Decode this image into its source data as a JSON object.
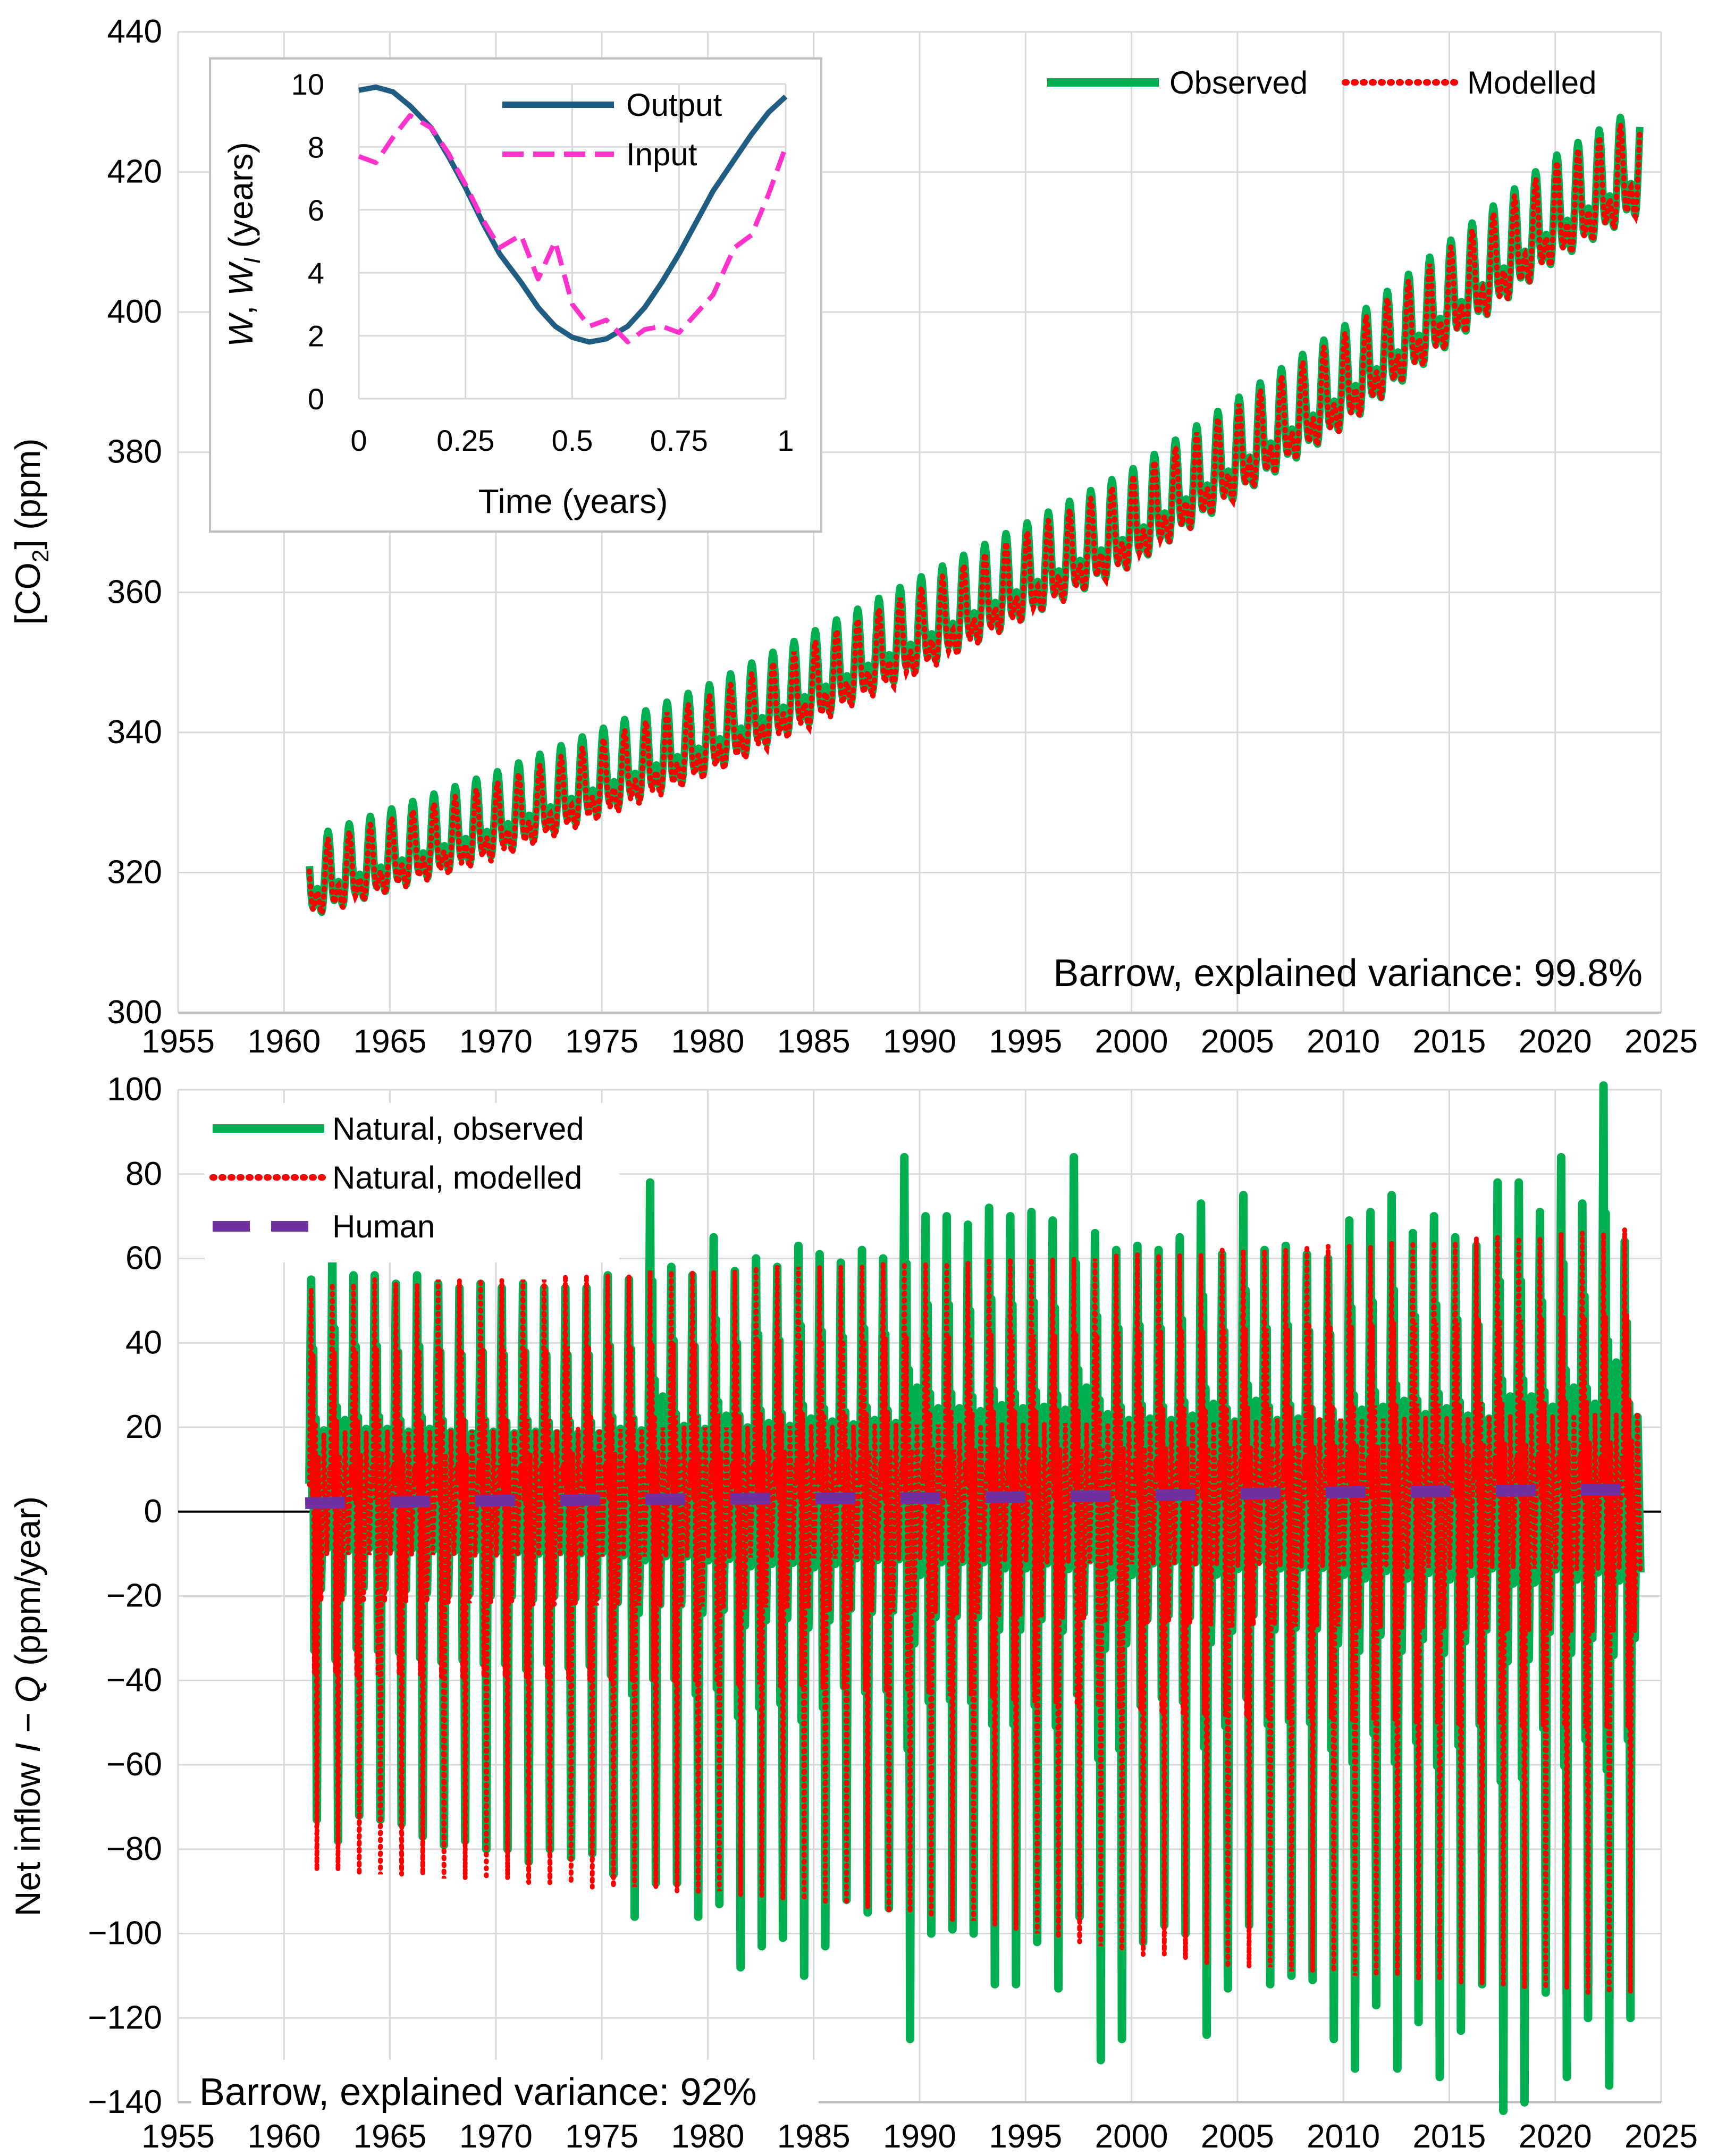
{
  "chart_data": [
    {
      "type": "line",
      "panel": "top",
      "xlim": [
        1955,
        2025
      ],
      "ylim": [
        300,
        440
      ],
      "x_ticks": [
        1955,
        1960,
        1965,
        1970,
        1975,
        1980,
        1985,
        1990,
        1995,
        2000,
        2005,
        2010,
        2015,
        2020,
        2025
      ],
      "y_ticks": [
        300,
        320,
        340,
        360,
        380,
        400,
        420,
        440
      ],
      "ylabel_parts": [
        "[CO",
        "2",
        "] (ppm)"
      ],
      "grid": true,
      "legend_position": "top-right",
      "annotation": "Barrow, explained variance: 99.8%",
      "series": [
        {
          "name": "Observed",
          "color": "#00b050",
          "style": "solid",
          "trend": {
            "x": [
              1961.2,
              1970,
              1980,
              1990,
              2000,
              2010,
              2020,
              2024
            ],
            "y": [
              318,
              327,
              339,
              354,
              369,
              389,
              413,
              420
            ]
          },
          "seasonal_amplitude": {
            "x": [
              1961.2,
              2024
            ],
            "y": [
              7.0,
              9.5
            ]
          }
        },
        {
          "name": "Modelled",
          "color": "#ff0000",
          "style": "dotted",
          "trend": {
            "x": [
              1961.2,
              1970,
              1980,
              1990,
              2000,
              2010,
              2020,
              2024
            ],
            "y": [
              317.5,
              326,
              338,
              353,
              368.5,
              388.5,
              412.5,
              419.5
            ]
          },
          "seasonal_amplitude": {
            "x": [
              1961.2,
              2024
            ],
            "y": [
              6.5,
              9.0
            ]
          }
        }
      ]
    },
    {
      "type": "line",
      "panel": "inset",
      "xlim": [
        0,
        1
      ],
      "ylim": [
        0,
        10
      ],
      "x_ticks": [
        "0",
        "0.25",
        "0.5",
        "0.75",
        "1"
      ],
      "y_ticks": [
        "0",
        "2",
        "4",
        "6",
        "8",
        "10"
      ],
      "xlabel": "Time (years)",
      "ylabel_parts": [
        "W",
        ", ",
        "W",
        "I",
        " (years)"
      ],
      "grid": true,
      "legend_position": "top-right",
      "series": [
        {
          "name": "Output",
          "color": "#1f5c82",
          "style": "solid",
          "x": [
            0,
            0.04,
            0.08,
            0.12,
            0.17,
            0.21,
            0.25,
            0.29,
            0.33,
            0.38,
            0.42,
            0.46,
            0.5,
            0.54,
            0.58,
            0.63,
            0.67,
            0.71,
            0.75,
            0.79,
            0.83,
            0.88,
            0.92,
            0.96,
            1.0
          ],
          "y": [
            9.8,
            9.9,
            9.75,
            9.3,
            8.6,
            7.7,
            6.7,
            5.6,
            4.6,
            3.7,
            2.9,
            2.3,
            1.95,
            1.8,
            1.9,
            2.3,
            2.9,
            3.7,
            4.6,
            5.6,
            6.6,
            7.6,
            8.4,
            9.1,
            9.6
          ]
        },
        {
          "name": "Input",
          "color": "#ff33cc",
          "style": "dashed",
          "x": [
            0,
            0.04,
            0.08,
            0.12,
            0.17,
            0.21,
            0.25,
            0.29,
            0.33,
            0.38,
            0.42,
            0.46,
            0.5,
            0.54,
            0.58,
            0.63,
            0.67,
            0.71,
            0.75,
            0.79,
            0.83,
            0.88,
            0.92,
            0.96,
            1.0
          ],
          "y": [
            7.7,
            7.5,
            8.3,
            9.0,
            8.6,
            7.8,
            6.8,
            5.7,
            4.8,
            5.2,
            3.8,
            5.0,
            3.0,
            2.3,
            2.5,
            1.8,
            2.2,
            2.3,
            2.1,
            2.7,
            3.3,
            4.8,
            5.2,
            6.5,
            8.0
          ]
        }
      ]
    },
    {
      "type": "line",
      "panel": "bottom",
      "xlim": [
        1955,
        2025
      ],
      "ylim": [
        -140,
        100
      ],
      "x_ticks": [
        1955,
        1960,
        1965,
        1970,
        1975,
        1980,
        1985,
        1990,
        1995,
        2000,
        2005,
        2010,
        2015,
        2020,
        2025
      ],
      "y_ticks": [
        -140,
        -120,
        -100,
        -80,
        -60,
        -40,
        -20,
        0,
        20,
        40,
        60,
        80,
        100
      ],
      "ylabel_parts": [
        "Net inflow ",
        "I",
        " − ",
        "Q",
        " (ppm/year)"
      ],
      "grid": true,
      "legend_position": "top-left",
      "annotation": "Barrow, explained variance: 92%",
      "series": [
        {
          "name": "Natural, observed",
          "color": "#00b050",
          "style": "solid",
          "annual_max": [
            55,
            62,
            56,
            56,
            54,
            56,
            54,
            53,
            54,
            53,
            54,
            53,
            53,
            53,
            56,
            55,
            78,
            58,
            56,
            65,
            57,
            60,
            58,
            63,
            61,
            59,
            62,
            60,
            84,
            70,
            70,
            68,
            72,
            70,
            71,
            69,
            84,
            66,
            62,
            63,
            62,
            65,
            73,
            61,
            75,
            62,
            63,
            61,
            60,
            69,
            71,
            75,
            66,
            70,
            65,
            63,
            78,
            78,
            71,
            84,
            73,
            101,
            64,
            92,
            62,
            85,
            74
          ],
          "annual_min": [
            -73,
            -78,
            -72,
            -73,
            -74,
            -77,
            -79,
            -78,
            -80,
            -80,
            -83,
            -80,
            -82,
            -81,
            -86,
            -96,
            -88,
            -88,
            -96,
            -93,
            -108,
            -103,
            -101,
            -110,
            -103,
            -92,
            -95,
            -94,
            -125,
            -100,
            -99,
            -100,
            -112,
            -112,
            -102,
            -113,
            -96,
            -130,
            -125,
            -102,
            -98,
            -100,
            -124,
            -113,
            -98,
            -112,
            -110,
            -111,
            -125,
            -132,
            -117,
            -132,
            -121,
            -134,
            -123,
            -112,
            -142,
            -140,
            -114,
            -134,
            -120,
            -136,
            -120,
            -128,
            -142,
            -129,
            -125
          ]
        },
        {
          "name": "Natural, modelled",
          "color": "#ff0000",
          "style": "dotted",
          "annual_max": [
            53,
            54,
            54,
            55,
            54,
            54,
            55,
            55,
            55,
            55,
            55,
            55,
            56,
            56,
            56,
            56,
            57,
            57,
            57,
            57,
            57,
            58,
            58,
            58,
            58,
            58,
            58,
            59,
            59,
            59,
            59,
            59,
            60,
            60,
            60,
            60,
            60,
            60,
            61,
            61,
            61,
            61,
            61,
            62,
            62,
            62,
            62,
            63,
            63,
            63,
            63,
            64,
            64,
            64,
            64,
            65,
            65,
            65,
            65,
            66,
            66,
            66,
            67,
            67,
            67,
            68,
            68
          ],
          "annual_min": [
            -85,
            -85,
            -86,
            -86,
            -86,
            -86,
            -87,
            -87,
            -87,
            -87,
            -88,
            -88,
            -88,
            -89,
            -89,
            -89,
            -89,
            -90,
            -90,
            -90,
            -91,
            -91,
            -92,
            -92,
            -93,
            -93,
            -94,
            -95,
            -95,
            -96,
            -97,
            -97,
            -98,
            -99,
            -100,
            -101,
            -102,
            -103,
            -104,
            -105,
            -105,
            -106,
            -107,
            -108,
            -108,
            -108,
            -109,
            -109,
            -109,
            -110,
            -110,
            -110,
            -111,
            -111,
            -112,
            -112,
            -112,
            -113,
            -113,
            -113,
            -114,
            -114,
            -114,
            -115,
            -115,
            -115,
            -115
          ]
        },
        {
          "name": "Human",
          "color": "#7030a0",
          "style": "long-dash",
          "x": [
            1961,
            1970,
            1980,
            1990,
            2000,
            2010,
            2020,
            2024
          ],
          "y": [
            2.0,
            2.6,
            3.0,
            3.2,
            3.8,
            4.6,
            5.1,
            5.2
          ]
        }
      ]
    }
  ]
}
